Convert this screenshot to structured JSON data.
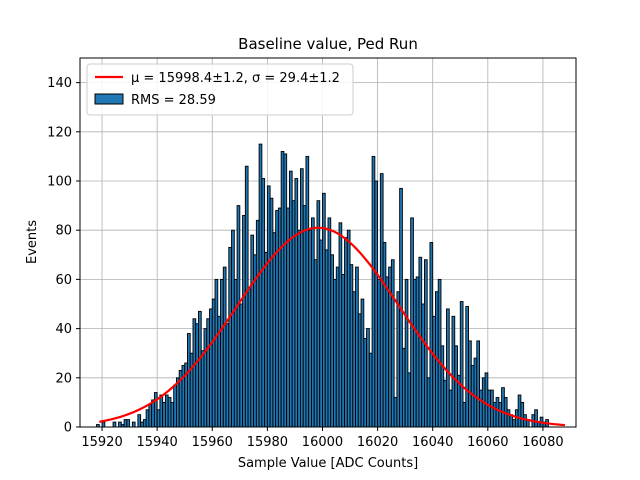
{
  "chart_data": {
    "type": "bar",
    "title": "Baseline value, Ped Run",
    "xlabel": "Sample Value [ADC Counts]",
    "ylabel": "Events",
    "xlim": [
      15912,
      16092
    ],
    "ylim": [
      0,
      150
    ],
    "xticks": [
      15920,
      15940,
      15960,
      15980,
      16000,
      16020,
      16040,
      16060,
      16080
    ],
    "yticks": [
      0,
      20,
      40,
      60,
      80,
      100,
      120,
      140
    ],
    "grid": true,
    "legend_position": "top-left",
    "bin_width": 1,
    "bins_start": 15918,
    "bins_values": [
      1,
      0,
      2,
      0,
      0,
      0,
      2,
      0,
      2,
      1,
      3,
      3,
      0,
      2,
      0,
      5,
      2,
      3,
      7,
      9,
      11,
      14,
      7,
      13,
      10,
      13,
      12,
      10,
      17,
      20,
      23,
      25,
      26,
      38,
      30,
      44,
      42,
      47,
      31,
      40,
      44,
      48,
      52,
      60,
      45,
      60,
      65,
      42,
      73,
      80,
      60,
      90,
      50,
      86,
      106,
      56,
      78,
      70,
      84,
      115,
      101,
      71,
      98,
      93,
      79,
      88,
      89,
      112,
      111,
      89,
      104,
      92,
      101,
      80,
      105,
      90,
      110,
      80,
      85,
      68,
      92,
      76,
      95,
      72,
      85,
      70,
      60,
      65,
      83,
      62,
      77,
      80,
      66,
      55,
      65,
      46,
      52,
      36,
      40,
      30,
      110,
      100,
      60,
      103,
      75,
      61,
      65,
      68,
      12,
      55,
      97,
      32,
      60,
      22,
      85,
      60,
      61,
      69,
      50,
      68,
      20,
      75,
      45,
      55,
      60,
      33,
      19,
      48,
      15,
      45,
      33,
      21,
      51,
      10,
      49,
      35,
      25,
      28,
      35,
      15,
      20,
      22,
      15,
      15,
      10,
      12,
      10,
      16,
      12,
      7,
      5,
      3,
      7,
      13,
      10,
      5,
      3,
      0,
      5,
      7,
      2,
      4,
      2,
      3
    ],
    "bar_color": "#1f77b4",
    "bar_edge_color": "#000000",
    "fit": {
      "mu": 15998.4,
      "sigma": 29.4,
      "amplitude": 81,
      "color": "#ff0000",
      "x_range": [
        15919,
        16088
      ]
    },
    "legend": [
      {
        "kind": "line",
        "label": "μ = 15998.4±1.2, σ = 29.4±1.2",
        "color": "#ff0000"
      },
      {
        "kind": "patch",
        "label": "RMS = 28.59",
        "color": "#1f77b4"
      }
    ]
  }
}
